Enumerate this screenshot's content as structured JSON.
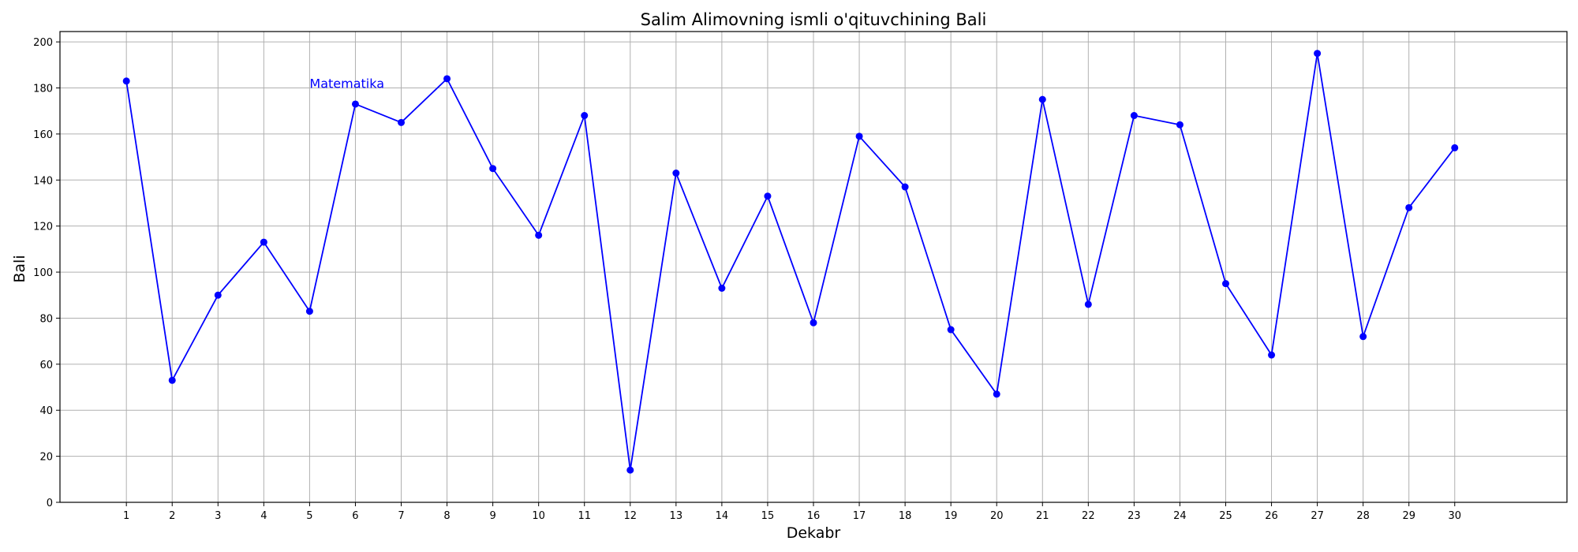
{
  "chart_data": {
    "type": "line",
    "title": "Salim Alimovning ismli o'qituvchining Bali",
    "xlabel": "Dekabr",
    "ylabel": "Bali",
    "x": [
      1,
      2,
      3,
      4,
      5,
      6,
      7,
      8,
      9,
      10,
      11,
      12,
      13,
      14,
      15,
      16,
      17,
      18,
      19,
      20,
      21,
      22,
      23,
      24,
      25,
      26,
      27,
      28,
      29,
      30
    ],
    "series": [
      {
        "values": [
          183,
          53,
          90,
          113,
          83,
          173,
          165,
          184,
          145,
          116,
          168,
          14,
          143,
          93,
          133,
          78,
          159,
          137,
          75,
          47,
          175,
          86,
          168,
          164,
          95,
          64,
          195,
          72,
          128,
          154
        ]
      }
    ],
    "xlim": [
      -0.45,
      32.45
    ],
    "ylim": [
      0,
      204.5
    ],
    "yticks": [
      0,
      20,
      40,
      60,
      80,
      100,
      120,
      140,
      160,
      180,
      200
    ],
    "grid": true,
    "line_color": "#0000ff",
    "annotations": [
      {
        "text": "Matematika",
        "x": 5,
        "y": 180,
        "color": "#0000ff"
      }
    ]
  }
}
